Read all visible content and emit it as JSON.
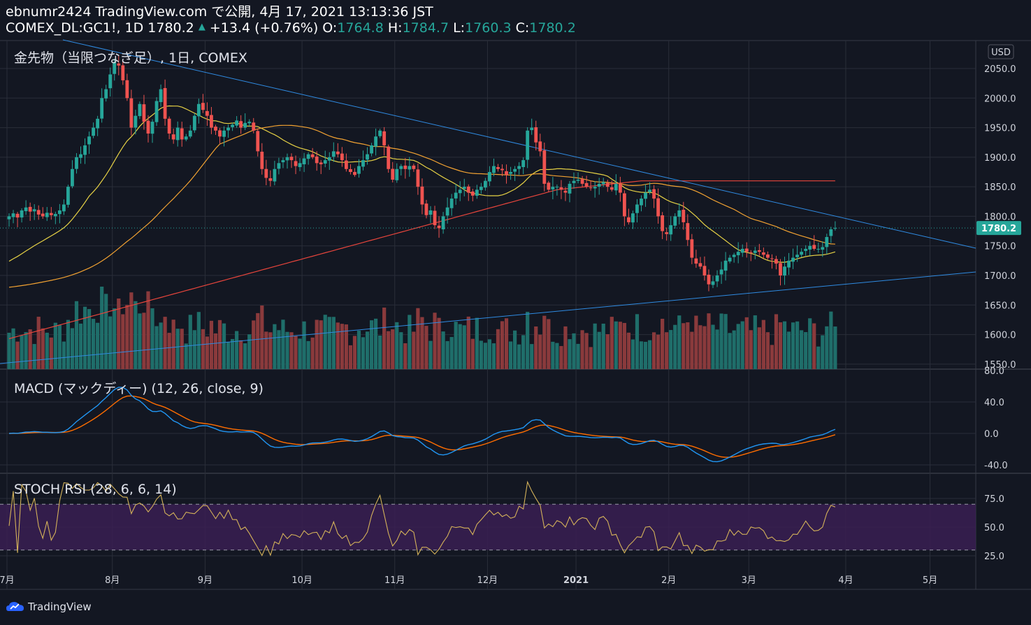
{
  "header": {
    "line1": "ebnumr2424 TradingView.com で公開, 4月 17, 2021 13:13:36 JST",
    "symbol": "COMEX_DL:GC1!, 1D 1780.2",
    "change": "+13.4 (+0.76%)",
    "o_label": "O:",
    "o_value": "1764.8",
    "h_label": "H:",
    "h_value": "1784.7",
    "l_label": "L:",
    "l_value": "1760.3",
    "c_label": "C:",
    "c_value": "1780.2"
  },
  "panes": {
    "price_title": "金先物（当限つなぎ足）, 1日, COMEX",
    "macd_title": "MACD (マックディー) (12, 26, close, 9)",
    "stoch_title": "STOCH RSI (28, 6, 6, 14)"
  },
  "currency": "USD",
  "price_tag": "1780.2",
  "logo": "TradingView",
  "colors": {
    "background": "#131722",
    "grid": "#2a2e39",
    "up": "#26a69a",
    "down": "#ef5350",
    "vol_up": "#1f6e6a",
    "vol_down": "#8a3a3c",
    "ma_yellow": "#e6d145",
    "ma_orange": "#f2a232",
    "ma_red": "#e8453c",
    "trendline": "#2f8be2",
    "macd": "#2196f3",
    "signal": "#ff6d00",
    "stoch": "#d4b25a",
    "stoch_band": "#3a1f52"
  },
  "chart_data": [
    {
      "type": "candlestick",
      "name": "price",
      "y_axis_ticks": [
        "2050.0",
        "2000.0",
        "1950.0",
        "1900.0",
        "1850.0",
        "1800.0",
        "1750.0",
        "1700.0",
        "1650.0",
        "1600.0",
        "1550.0"
      ],
      "ylim": [
        1550,
        2080
      ],
      "x_ticks": [
        "7月",
        "8月",
        "9月",
        "10月",
        "11月",
        "12月",
        "2021",
        "2月",
        "3月",
        "4月",
        "5月"
      ],
      "x_tick_index": [
        0,
        25,
        47,
        70,
        92,
        114,
        135,
        157,
        176,
        199,
        219
      ],
      "last_close": 1780.2,
      "closes": [
        1800,
        1805,
        1798,
        1810,
        1815,
        1808,
        1812,
        1803,
        1800,
        1806,
        1802,
        1804,
        1810,
        1820,
        1850,
        1880,
        1900,
        1905,
        1920,
        1935,
        1950,
        1965,
        2000,
        2015,
        2040,
        2060,
        2055,
        2030,
        2000,
        1950,
        1970,
        1990,
        1960,
        1940,
        1960,
        1995,
        2015,
        1965,
        1940,
        1930,
        1950,
        1930,
        1935,
        1945,
        1970,
        1990,
        1980,
        1970,
        1950,
        1945,
        1935,
        1945,
        1950,
        1955,
        1962,
        1950,
        1958,
        1960,
        1945,
        1910,
        1880,
        1865,
        1860,
        1880,
        1890,
        1895,
        1900,
        1895,
        1885,
        1890,
        1898,
        1905,
        1900,
        1890,
        1888,
        1895,
        1900,
        1910,
        1905,
        1895,
        1880,
        1875,
        1870,
        1885,
        1895,
        1905,
        1920,
        1935,
        1945,
        1920,
        1880,
        1862,
        1880,
        1885,
        1880,
        1885,
        1880,
        1850,
        1820,
        1802,
        1810,
        1785,
        1780,
        1800,
        1815,
        1830,
        1840,
        1845,
        1850,
        1840,
        1835,
        1845,
        1850,
        1860,
        1875,
        1885,
        1880,
        1878,
        1870,
        1875,
        1880,
        1885,
        1895,
        1945,
        1950,
        1925,
        1910,
        1855,
        1845,
        1850,
        1850,
        1845,
        1840,
        1855,
        1860,
        1862,
        1855,
        1850,
        1848,
        1850,
        1855,
        1858,
        1850,
        1845,
        1855,
        1840,
        1800,
        1790,
        1805,
        1820,
        1830,
        1840,
        1845,
        1830,
        1800,
        1775,
        1770,
        1785,
        1800,
        1810,
        1790,
        1760,
        1730,
        1720,
        1715,
        1700,
        1685,
        1690,
        1700,
        1710,
        1725,
        1730,
        1735,
        1740,
        1745,
        1740,
        1738,
        1742,
        1740,
        1735,
        1730,
        1728,
        1720,
        1700,
        1715,
        1725,
        1730,
        1735,
        1740,
        1745,
        1750,
        1745,
        1745,
        1748,
        1765,
        1778,
        1780.2
      ]
    },
    {
      "type": "line",
      "name": "MACD",
      "y_axis_ticks": [
        "80.0",
        "40.0",
        "0.0",
        "-40.0"
      ],
      "ylim": [
        -50,
        90
      ],
      "series": [
        {
          "name": "MACD"
        },
        {
          "name": "Signal"
        }
      ]
    },
    {
      "type": "line",
      "name": "STOCH RSI",
      "y_axis_ticks": [
        "75.0",
        "50.0",
        "25.0"
      ],
      "ylim": [
        18,
        100
      ],
      "band": [
        30,
        70
      ]
    }
  ]
}
